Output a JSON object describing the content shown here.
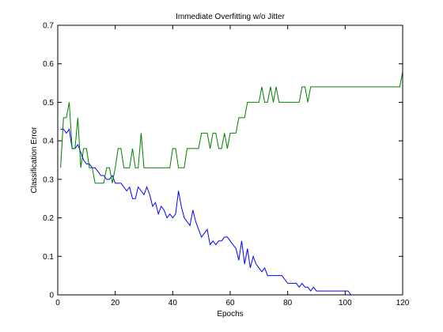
{
  "chart_data": {
    "type": "line",
    "title": "Immediate Overfitting w/o Jitter",
    "xlabel": "Epochs",
    "ylabel": "Classification Error",
    "xlim": [
      0,
      120
    ],
    "ylim": [
      0,
      0.7
    ],
    "xticks": [
      "0",
      "20",
      "40",
      "60",
      "80",
      "100",
      "120"
    ],
    "yticks": [
      "0",
      "0.1",
      "0.2",
      "0.3",
      "0.4",
      "0.5",
      "0.6",
      "0.7"
    ],
    "grid": false,
    "legend": "none",
    "series": [
      {
        "color": "#0000ff",
        "x": [
          1,
          2,
          3,
          4,
          5,
          6,
          7,
          8,
          9,
          10,
          11,
          12,
          13,
          14,
          15,
          16,
          17,
          18,
          19,
          20,
          21,
          22,
          23,
          24,
          25,
          26,
          27,
          28,
          29,
          30,
          31,
          32,
          33,
          34,
          35,
          36,
          37,
          38,
          39,
          40,
          41,
          42,
          43,
          44,
          45,
          46,
          47,
          48,
          49,
          50,
          51,
          52,
          53,
          54,
          55,
          56,
          57,
          58,
          59,
          60,
          61,
          62,
          63,
          64,
          65,
          66,
          67,
          68,
          69,
          70,
          71,
          72,
          73,
          74,
          75,
          76,
          77,
          78,
          79,
          80,
          81,
          82,
          83,
          84,
          85,
          86,
          87,
          88,
          89,
          90,
          91,
          92,
          93,
          94,
          95,
          96,
          97,
          98,
          99,
          100,
          101,
          102
        ],
        "y": [
          0.43,
          0.43,
          0.42,
          0.43,
          0.38,
          0.38,
          0.39,
          0.37,
          0.35,
          0.34,
          0.34,
          0.33,
          0.33,
          0.32,
          0.31,
          0.31,
          0.3,
          0.3,
          0.31,
          0.29,
          0.29,
          0.29,
          0.28,
          0.27,
          0.28,
          0.25,
          0.25,
          0.28,
          0.27,
          0.26,
          0.28,
          0.26,
          0.23,
          0.24,
          0.21,
          0.23,
          0.22,
          0.2,
          0.21,
          0.2,
          0.21,
          0.27,
          0.23,
          0.2,
          0.19,
          0.18,
          0.22,
          0.19,
          0.17,
          0.15,
          0.16,
          0.17,
          0.13,
          0.14,
          0.13,
          0.14,
          0.14,
          0.15,
          0.15,
          0.14,
          0.13,
          0.12,
          0.09,
          0.14,
          0.08,
          0.12,
          0.07,
          0.1,
          0.08,
          0.07,
          0.06,
          0.07,
          0.05,
          0.05,
          0.05,
          0.05,
          0.05,
          0.05,
          0.04,
          0.03,
          0.03,
          0.03,
          0.03,
          0.02,
          0.03,
          0.02,
          0.02,
          0.01,
          0.02,
          0.01,
          0.01,
          0.01,
          0.01,
          0.01,
          0.01,
          0.01,
          0.01,
          0.01,
          0.01,
          0.01,
          0.01,
          0.0
        ]
      },
      {
        "color": "#008000",
        "x": [
          1,
          2,
          3,
          4,
          5,
          6,
          7,
          8,
          9,
          10,
          11,
          12,
          13,
          14,
          15,
          16,
          17,
          18,
          19,
          20,
          21,
          22,
          23,
          24,
          25,
          26,
          27,
          28,
          29,
          30,
          31,
          32,
          33,
          34,
          35,
          36,
          37,
          38,
          39,
          40,
          41,
          42,
          43,
          44,
          45,
          46,
          47,
          48,
          49,
          50,
          51,
          52,
          53,
          54,
          55,
          56,
          57,
          58,
          59,
          60,
          61,
          62,
          63,
          64,
          65,
          66,
          67,
          68,
          69,
          70,
          71,
          72,
          73,
          74,
          75,
          76,
          77,
          78,
          79,
          80,
          81,
          82,
          83,
          84,
          85,
          86,
          87,
          88,
          89,
          90,
          91,
          92,
          93,
          94,
          95,
          96,
          97,
          98,
          99,
          100,
          101,
          102,
          103,
          104,
          105,
          106,
          107,
          108,
          109,
          110,
          111,
          112,
          113,
          114,
          115,
          116,
          117,
          118,
          119,
          120
        ],
        "y": [
          0.33,
          0.46,
          0.46,
          0.5,
          0.38,
          0.38,
          0.46,
          0.33,
          0.38,
          0.38,
          0.33,
          0.33,
          0.29,
          0.29,
          0.29,
          0.29,
          0.33,
          0.33,
          0.29,
          0.33,
          0.38,
          0.38,
          0.33,
          0.33,
          0.33,
          0.38,
          0.33,
          0.33,
          0.42,
          0.33,
          0.33,
          0.33,
          0.33,
          0.33,
          0.33,
          0.33,
          0.33,
          0.33,
          0.33,
          0.38,
          0.38,
          0.33,
          0.33,
          0.33,
          0.38,
          0.38,
          0.38,
          0.38,
          0.38,
          0.42,
          0.42,
          0.42,
          0.38,
          0.42,
          0.42,
          0.38,
          0.38,
          0.42,
          0.38,
          0.42,
          0.42,
          0.42,
          0.46,
          0.46,
          0.46,
          0.5,
          0.5,
          0.5,
          0.5,
          0.5,
          0.54,
          0.5,
          0.5,
          0.54,
          0.5,
          0.54,
          0.5,
          0.5,
          0.5,
          0.5,
          0.5,
          0.5,
          0.5,
          0.5,
          0.54,
          0.54,
          0.5,
          0.54,
          0.54,
          0.54,
          0.54,
          0.54,
          0.54,
          0.54,
          0.54,
          0.54,
          0.54,
          0.54,
          0.54,
          0.54,
          0.54,
          0.54,
          0.54,
          0.54,
          0.54,
          0.54,
          0.54,
          0.54,
          0.54,
          0.54,
          0.54,
          0.54,
          0.54,
          0.54,
          0.54,
          0.54,
          0.54,
          0.54,
          0.54,
          0.58
        ]
      }
    ]
  }
}
